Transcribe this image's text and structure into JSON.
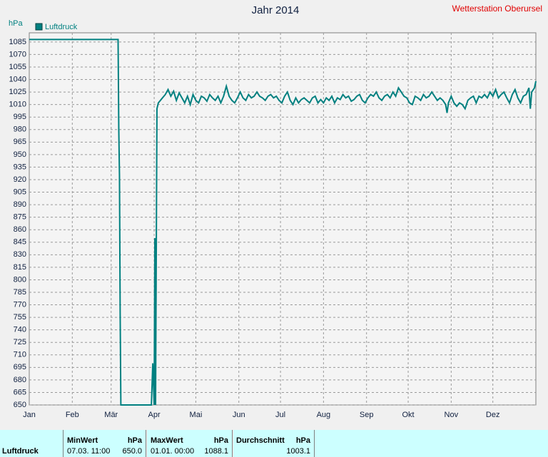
{
  "chart_data": {
    "type": "line",
    "title": "Jahr 2014",
    "station": "Wetterstation Oberursel",
    "y_unit": "hPa",
    "xlim": [
      0,
      365
    ],
    "ylim": [
      650,
      1096
    ],
    "xticks": [
      {
        "value": 0,
        "label": "Jan"
      },
      {
        "value": 31,
        "label": "Feb"
      },
      {
        "value": 59,
        "label": "Mär"
      },
      {
        "value": 90,
        "label": "Apr"
      },
      {
        "value": 120,
        "label": "Mai"
      },
      {
        "value": 151,
        "label": "Jun"
      },
      {
        "value": 181,
        "label": "Jul"
      },
      {
        "value": 212,
        "label": "Aug"
      },
      {
        "value": 243,
        "label": "Sep"
      },
      {
        "value": 273,
        "label": "Okt"
      },
      {
        "value": 304,
        "label": "Nov"
      },
      {
        "value": 334,
        "label": "Dez"
      }
    ],
    "yticks": [
      650,
      665,
      680,
      695,
      710,
      725,
      740,
      755,
      770,
      785,
      800,
      815,
      830,
      845,
      860,
      875,
      890,
      905,
      920,
      935,
      950,
      965,
      980,
      995,
      1010,
      1025,
      1040,
      1055,
      1070,
      1085
    ],
    "grid": true,
    "series": [
      {
        "name": "Luftdruck",
        "color": "#008080",
        "x": [
          0,
          64,
          64.5,
          65,
          65.5,
          66,
          88,
          89,
          90,
          90.5,
          91,
          92,
          93,
          96,
          98,
          100,
          102,
          104,
          106,
          108,
          110,
          112,
          114,
          116,
          118,
          120,
          122,
          124,
          126,
          128,
          130,
          132,
          134,
          136,
          138,
          140,
          142,
          144,
          146,
          148,
          150,
          152,
          154,
          156,
          158,
          160,
          162,
          164,
          166,
          168,
          170,
          172,
          174,
          176,
          178,
          180,
          182,
          184,
          186,
          188,
          190,
          192,
          194,
          196,
          198,
          200,
          202,
          204,
          206,
          208,
          210,
          212,
          214,
          216,
          218,
          220,
          222,
          224,
          226,
          228,
          230,
          232,
          234,
          236,
          238,
          240,
          242,
          244,
          246,
          248,
          250,
          252,
          254,
          256,
          258,
          260,
          262,
          264,
          266,
          268,
          270,
          272,
          274,
          276,
          278,
          280,
          282,
          284,
          286,
          288,
          290,
          292,
          294,
          296,
          298,
          300,
          301,
          302,
          304,
          306,
          308,
          310,
          312,
          314,
          316,
          318,
          320,
          322,
          324,
          326,
          328,
          330,
          332,
          334,
          336,
          338,
          340,
          342,
          344,
          346,
          348,
          350,
          352,
          354,
          356,
          358,
          360,
          361,
          362,
          364,
          365
        ],
        "values": [
          1088,
          1088,
          980,
          925,
          760,
          650,
          650,
          700,
          650,
          850,
          650,
          1005,
          1012,
          1018,
          1022,
          1028,
          1020,
          1026,
          1015,
          1024,
          1018,
          1012,
          1020,
          1010,
          1022,
          1015,
          1012,
          1020,
          1018,
          1014,
          1022,
          1018,
          1015,
          1020,
          1012,
          1020,
          1032,
          1020,
          1015,
          1012,
          1018,
          1025,
          1018,
          1015,
          1022,
          1018,
          1020,
          1025,
          1020,
          1018,
          1015,
          1020,
          1022,
          1018,
          1020,
          1015,
          1012,
          1020,
          1025,
          1015,
          1010,
          1018,
          1012,
          1016,
          1018,
          1015,
          1012,
          1018,
          1020,
          1012,
          1016,
          1012,
          1018,
          1015,
          1020,
          1012,
          1018,
          1016,
          1022,
          1018,
          1020,
          1014,
          1016,
          1020,
          1022,
          1015,
          1012,
          1018,
          1022,
          1020,
          1025,
          1018,
          1015,
          1020,
          1022,
          1018,
          1025,
          1020,
          1030,
          1025,
          1020,
          1018,
          1012,
          1010,
          1020,
          1018,
          1015,
          1022,
          1018,
          1020,
          1025,
          1020,
          1015,
          1018,
          1015,
          1010,
          1000,
          1012,
          1020,
          1012,
          1008,
          1012,
          1010,
          1005,
          1015,
          1018,
          1020,
          1012,
          1020,
          1018,
          1022,
          1018,
          1025,
          1020,
          1028,
          1018,
          1022,
          1025,
          1018,
          1012,
          1022,
          1028,
          1018,
          1012,
          1020,
          1022,
          1030,
          1005,
          1025,
          1030,
          1038
        ]
      }
    ]
  },
  "summary": {
    "row_label": "Luftdruck",
    "columns": [
      {
        "title": "MinWert",
        "unit": "hPa",
        "time": "07.03. 11:00",
        "value": "650.0"
      },
      {
        "title": "MaxWert",
        "unit": "hPa",
        "time": "01.01. 00:00",
        "value": "1088.1"
      },
      {
        "title": "Durchschnitt",
        "unit": "hPa",
        "value": "1003.1"
      }
    ]
  }
}
